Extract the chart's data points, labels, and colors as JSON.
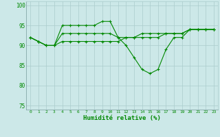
{
  "x": [
    0,
    1,
    2,
    3,
    4,
    5,
    6,
    7,
    8,
    9,
    10,
    11,
    12,
    13,
    14,
    15,
    16,
    17,
    18,
    19,
    20,
    21,
    22,
    23
  ],
  "line1": [
    92,
    91,
    90,
    90,
    95,
    95,
    95,
    95,
    95,
    96,
    96,
    92,
    90,
    87,
    84,
    83,
    84,
    89,
    92,
    92,
    94,
    94,
    94,
    94
  ],
  "line2": [
    92,
    91,
    90,
    90,
    91,
    91,
    91,
    91,
    91,
    91,
    91,
    91,
    92,
    92,
    93,
    93,
    93,
    93,
    93,
    93,
    94,
    94,
    94,
    94
  ],
  "line3": [
    92,
    91,
    90,
    90,
    93,
    93,
    93,
    93,
    93,
    93,
    93,
    92,
    92,
    92,
    92,
    92,
    92,
    93,
    93,
    93,
    94,
    94,
    94,
    94
  ],
  "bg_color": "#cce8e8",
  "grid_color": "#aacccc",
  "line_color": "#008800",
  "xlabel": "Humidité relative (%)",
  "ylim": [
    74,
    101
  ],
  "yticks": [
    75,
    80,
    85,
    90,
    95,
    100
  ],
  "xlim": [
    -0.5,
    23.5
  ],
  "marker": "+"
}
